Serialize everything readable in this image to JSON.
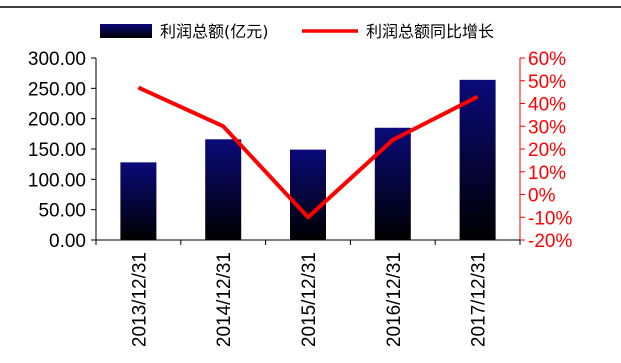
{
  "chart_data": {
    "type": "bar",
    "categories": [
      "2013/12/31",
      "2014/12/31",
      "2015/12/31",
      "2016/12/31",
      "2017/12/31"
    ],
    "series": [
      {
        "name": "利润总额(亿元)",
        "type": "bar",
        "axis": "left",
        "values": [
          128,
          166,
          149,
          185,
          264
        ]
      },
      {
        "name": "利润总额同比增长",
        "type": "line",
        "axis": "right",
        "values": [
          0.47,
          0.3,
          -0.1,
          0.24,
          0.43
        ]
      }
    ],
    "left_axis": {
      "ylim": [
        0,
        300
      ],
      "ticks": [
        0,
        50,
        100,
        150,
        200,
        250,
        300
      ],
      "tick_labels": [
        "0.00",
        "50.00",
        "100.00",
        "150.00",
        "200.00",
        "250.00",
        "300.00"
      ]
    },
    "right_axis": {
      "ylim": [
        -0.2,
        0.6
      ],
      "ticks": [
        -0.2,
        -0.1,
        0,
        0.1,
        0.2,
        0.3,
        0.4,
        0.5,
        0.6
      ],
      "tick_labels": [
        "-20%",
        "-10%",
        "0%",
        "10%",
        "20%",
        "30%",
        "40%",
        "50%",
        "60%"
      ]
    },
    "title": "",
    "xlabel": "",
    "ylabel": "",
    "grid": false,
    "legend_position": "top",
    "colors": {
      "bar_top": "#0a0a7a",
      "bar_bottom": "#000000",
      "line": "#ff0000",
      "right_axis": "#ff0000",
      "left_axis": "#000000"
    }
  }
}
